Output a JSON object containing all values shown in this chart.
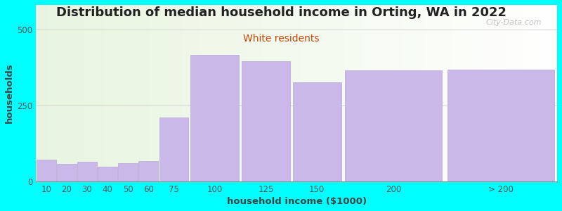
{
  "title": "Distribution of median household income in Orting, WA in 2022",
  "subtitle": "White residents",
  "xlabel": "household income ($1000)",
  "ylabel": "households",
  "background_color": "#00FFFF",
  "bar_color": "#c9b8e8",
  "bar_edge_color": "#b8a8d8",
  "categories": [
    "10",
    "20",
    "30",
    "40",
    "50",
    "60",
    "75",
    "100",
    "125",
    "150",
    "200",
    "> 200"
  ],
  "values": [
    72,
    58,
    65,
    48,
    60,
    68,
    210,
    415,
    395,
    325,
    365,
    368
  ],
  "ylim": [
    0,
    580
  ],
  "yticks": [
    0,
    250,
    500
  ],
  "title_fontsize": 13,
  "subtitle_fontsize": 10,
  "axis_label_fontsize": 9.5,
  "tick_fontsize": 8.5,
  "watermark": "City-Data.com",
  "subtitle_color": "#cc4400",
  "title_color": "#222222",
  "ylabel_color": "#444444",
  "xlabel_color": "#444444"
}
